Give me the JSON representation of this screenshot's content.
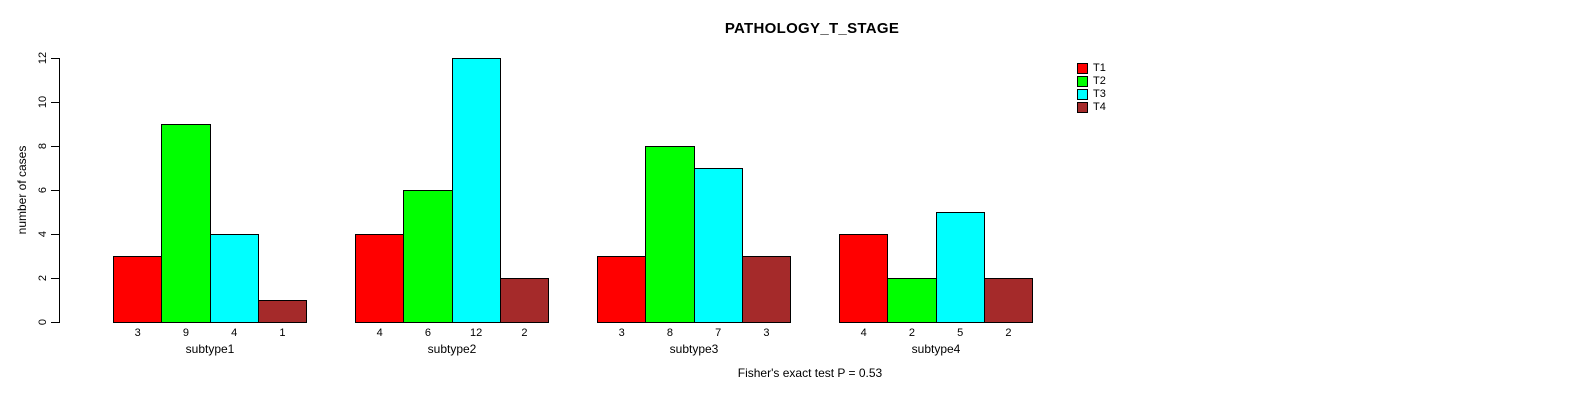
{
  "title": "PATHOLOGY_T_STAGE",
  "footer": "Fisher's exact test P = 0.53",
  "chart_data": {
    "type": "bar",
    "title": "PATHOLOGY_T_STAGE",
    "xlabel": "",
    "ylabel": "number of cases",
    "ylim": [
      0,
      12
    ],
    "yticks": [
      0,
      2,
      4,
      6,
      8,
      10,
      12
    ],
    "grid": false,
    "legend_position": "top-right",
    "bar_value_labels_shown": true,
    "annotation": "Fisher's exact test P = 0.53",
    "categories": [
      "subtype1",
      "subtype2",
      "subtype3",
      "subtype4"
    ],
    "series": [
      {
        "name": "T1",
        "color": "#FF0000",
        "values": [
          3,
          4,
          3,
          4
        ]
      },
      {
        "name": "T2",
        "color": "#00FF00",
        "values": [
          9,
          6,
          8,
          2
        ]
      },
      {
        "name": "T3",
        "color": "#00FFFF",
        "values": [
          4,
          12,
          7,
          5
        ]
      },
      {
        "name": "T4",
        "color": "#A52A2A",
        "values": [
          1,
          2,
          3,
          2
        ]
      }
    ]
  }
}
